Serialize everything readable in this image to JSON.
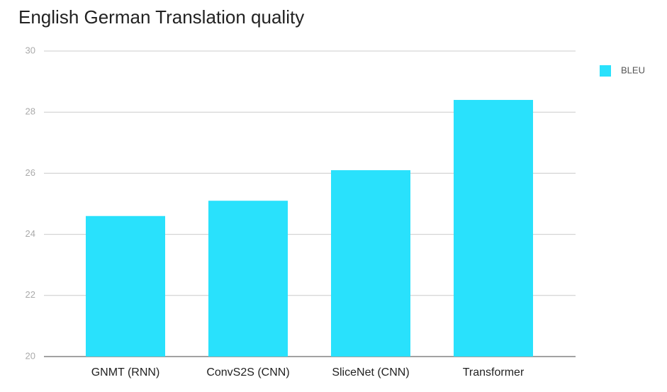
{
  "chart_data": {
    "type": "bar",
    "title": "English German Translation quality",
    "categories": [
      "GNMT (RNN)",
      "ConvS2S (CNN)",
      "SliceNet (CNN)",
      "Transformer"
    ],
    "series": [
      {
        "name": "BLEU",
        "color": "#29e1fc",
        "values": [
          24.6,
          25.1,
          26.1,
          28.4
        ]
      }
    ],
    "ylim": [
      20,
      30
    ],
    "yticks": [
      20,
      22,
      24,
      26,
      28,
      30
    ],
    "grid": true,
    "legend": "right"
  }
}
